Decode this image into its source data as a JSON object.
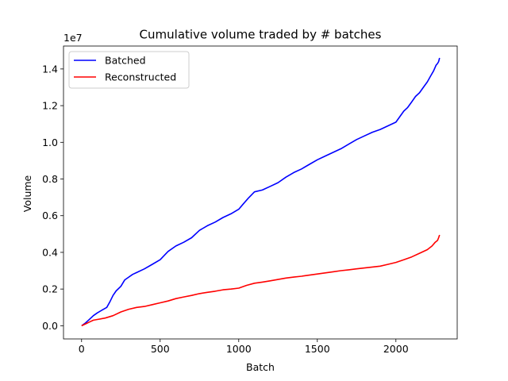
{
  "chart_data": {
    "type": "line",
    "title": "Cumulative volume traded by # batches",
    "xlabel": "Batch",
    "ylabel": "Volume",
    "y_offset_label": "1e7",
    "xlim": [
      -115,
      2390
    ],
    "ylim": [
      -0.072,
      1.525
    ],
    "x_ticks": [
      0,
      500,
      1000,
      1500,
      2000
    ],
    "x_tick_labels": [
      "0",
      "500",
      "1000",
      "1500",
      "2000"
    ],
    "y_ticks": [
      0.0,
      0.2,
      0.4,
      0.6,
      0.8,
      1.0,
      1.2,
      1.4
    ],
    "y_tick_labels": [
      "0.0",
      "0.2",
      "0.4",
      "0.6",
      "0.8",
      "1.0",
      "1.2",
      "1.4"
    ],
    "grid": false,
    "legend_position": "upper-left",
    "series": [
      {
        "name": "Batched",
        "color": "#0000ff",
        "x": [
          0,
          25,
          50,
          75,
          100,
          130,
          160,
          180,
          200,
          220,
          250,
          275,
          300,
          325,
          350,
          400,
          450,
          500,
          550,
          600,
          650,
          700,
          750,
          800,
          850,
          900,
          950,
          1000,
          1030,
          1060,
          1100,
          1150,
          1200,
          1250,
          1300,
          1350,
          1400,
          1450,
          1500,
          1550,
          1600,
          1650,
          1700,
          1750,
          1800,
          1850,
          1900,
          1950,
          2000,
          2025,
          2050,
          2075,
          2100,
          2125,
          2150,
          2175,
          2200,
          2220,
          2240,
          2255,
          2265,
          2272,
          2278
        ],
        "y": [
          0.0,
          0.015,
          0.035,
          0.055,
          0.07,
          0.085,
          0.1,
          0.13,
          0.165,
          0.19,
          0.215,
          0.25,
          0.265,
          0.28,
          0.29,
          0.31,
          0.335,
          0.36,
          0.405,
          0.435,
          0.455,
          0.48,
          0.52,
          0.545,
          0.565,
          0.59,
          0.61,
          0.635,
          0.665,
          0.695,
          0.73,
          0.74,
          0.76,
          0.78,
          0.81,
          0.835,
          0.855,
          0.88,
          0.905,
          0.925,
          0.945,
          0.965,
          0.99,
          1.015,
          1.035,
          1.055,
          1.07,
          1.09,
          1.11,
          1.14,
          1.17,
          1.19,
          1.22,
          1.25,
          1.27,
          1.3,
          1.33,
          1.36,
          1.39,
          1.42,
          1.43,
          1.44,
          1.46
        ]
      },
      {
        "name": "Reconstructed",
        "color": "#ff0000",
        "x": [
          0,
          25,
          50,
          75,
          100,
          150,
          200,
          250,
          300,
          350,
          400,
          450,
          500,
          550,
          600,
          650,
          700,
          750,
          800,
          850,
          900,
          950,
          1000,
          1050,
          1100,
          1150,
          1200,
          1250,
          1300,
          1350,
          1400,
          1450,
          1500,
          1550,
          1600,
          1650,
          1700,
          1750,
          1800,
          1850,
          1900,
          1950,
          2000,
          2050,
          2100,
          2150,
          2200,
          2230,
          2250,
          2265,
          2272,
          2278
        ],
        "y": [
          0.0,
          0.01,
          0.02,
          0.03,
          0.034,
          0.042,
          0.055,
          0.075,
          0.09,
          0.1,
          0.105,
          0.115,
          0.125,
          0.135,
          0.148,
          0.157,
          0.165,
          0.175,
          0.182,
          0.188,
          0.196,
          0.2,
          0.205,
          0.22,
          0.232,
          0.238,
          0.245,
          0.252,
          0.26,
          0.265,
          0.27,
          0.276,
          0.282,
          0.288,
          0.294,
          0.3,
          0.305,
          0.31,
          0.315,
          0.32,
          0.325,
          0.335,
          0.345,
          0.36,
          0.375,
          0.395,
          0.415,
          0.435,
          0.455,
          0.465,
          0.48,
          0.495
        ]
      }
    ]
  }
}
